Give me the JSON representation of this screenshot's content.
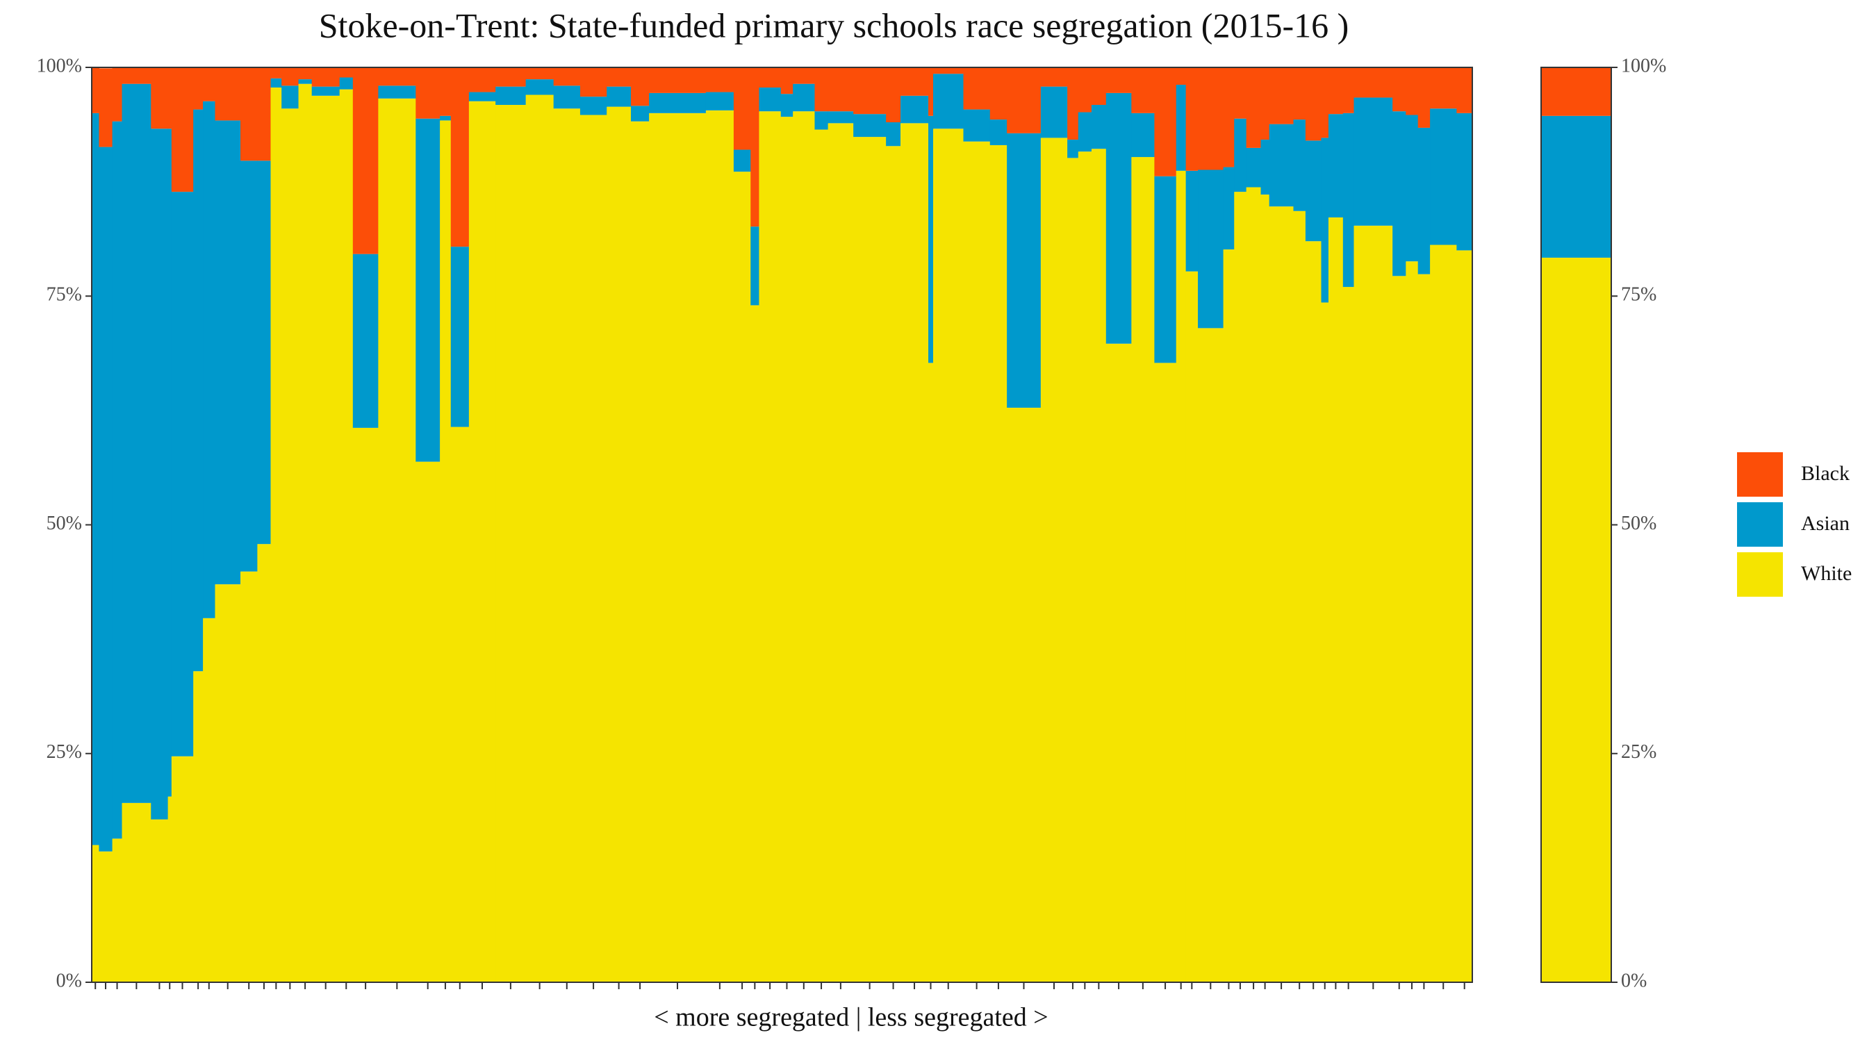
{
  "chart_data": {
    "type": "mekko",
    "title": "Stoke-on-Trent: State-funded primary schools race segregation (2015-16 )",
    "xlabel": "< more segregated | less segregated >",
    "ylim": [
      0,
      100
    ],
    "yticks": [
      {
        "value": 0,
        "label": "0%"
      },
      {
        "value": 25,
        "label": "25%"
      },
      {
        "value": 50,
        "label": "50%"
      },
      {
        "value": 75,
        "label": "75%"
      },
      {
        "value": 100,
        "label": "100%"
      }
    ],
    "widths": [
      6,
      11,
      8,
      24,
      14,
      3,
      18,
      8,
      10,
      21,
      14,
      11,
      9,
      14,
      11,
      23,
      11,
      21,
      31,
      20,
      9,
      15,
      22,
      25,
      23,
      22,
      22,
      20,
      15,
      47,
      23,
      14,
      7,
      18,
      10,
      18,
      11,
      21,
      27,
      12,
      23,
      4,
      25,
      22,
      14,
      28,
      22,
      9,
      11,
      12,
      21,
      19,
      18,
      8,
      10,
      21,
      9,
      10,
      12,
      7,
      20,
      10,
      13,
      6,
      12,
      9,
      32,
      11,
      10,
      10,
      22,
      13
    ],
    "series": [
      {
        "name": "White",
        "color": "#f5e400",
        "total": 79.2,
        "values": [
          15,
          14.3,
          15.7,
          19.6,
          17.8,
          20.3,
          24.7,
          34,
          39.8,
          43.5,
          44.9,
          47.9,
          97.8,
          95.5,
          98.2,
          96.9,
          97.6,
          60.6,
          96.6,
          56.9,
          94.2,
          60.7,
          96.3,
          95.9,
          97,
          95.5,
          94.8,
          95.7,
          94.1,
          95,
          95.3,
          88.6,
          74,
          95.2,
          94.6,
          95.2,
          93.2,
          93.9,
          92.4,
          91.4,
          93.9,
          67.7,
          93.3,
          91.9,
          91.5,
          62.8,
          92.3,
          90.1,
          90.8,
          91.1,
          69.8,
          90.2,
          67.7,
          88.7,
          77.7,
          71.5,
          80.1,
          86.4,
          86.9,
          86.1,
          84.8,
          84.3,
          81,
          74.3,
          83.6,
          76,
          82.7,
          77.2,
          78.8,
          77.4,
          80.6,
          80
        ]
      },
      {
        "name": "Asian",
        "color": "#0099cc",
        "total": 15.5,
        "values": [
          80,
          77,
          78.4,
          78.6,
          75.5,
          73,
          61.7,
          61.4,
          56.5,
          50.7,
          44.9,
          41.9,
          1,
          2.5,
          0.5,
          1,
          1.3,
          19,
          1.4,
          37.5,
          0.5,
          19.7,
          1,
          2,
          1.7,
          2.5,
          2,
          2.2,
          1.7,
          2.2,
          2,
          2.4,
          8.6,
          2.6,
          2.5,
          3,
          2,
          1.3,
          2.5,
          2.6,
          3,
          27,
          6,
          3.5,
          2.8,
          30,
          5.6,
          2,
          4.3,
          4.8,
          27.4,
          4.8,
          20.4,
          9.4,
          11,
          17.3,
          9,
          8,
          4.3,
          6,
          9,
          10,
          11,
          18,
          11.3,
          19,
          14,
          18,
          16,
          16,
          14.9,
          15
        ]
      },
      {
        "name": "Black",
        "color": "#fc4e08",
        "total": 5.3,
        "values": [
          5,
          8.6,
          5.9,
          1.8,
          6.7,
          6.7,
          13.6,
          4.6,
          3.7,
          5.8,
          10.2,
          10.2,
          1.2,
          2,
          1.3,
          2.1,
          1.1,
          20.4,
          2,
          5.6,
          5.3,
          19.6,
          2.7,
          2.1,
          1.3,
          2,
          3.2,
          2.1,
          4.2,
          2.8,
          2.7,
          9,
          17.4,
          2.2,
          2.9,
          1.8,
          4.8,
          4.8,
          5.1,
          6,
          3.1,
          5.3,
          0.7,
          4.6,
          5.7,
          7.2,
          2.1,
          7.9,
          4.9,
          4.1,
          2.8,
          5,
          11.9,
          1.9,
          11.3,
          11.2,
          10.9,
          5.6,
          8.8,
          7.9,
          6.2,
          5.7,
          8,
          7.7,
          5.1,
          5,
          3.3,
          4.8,
          5.2,
          6.6,
          4.5,
          5
        ]
      }
    ]
  }
}
